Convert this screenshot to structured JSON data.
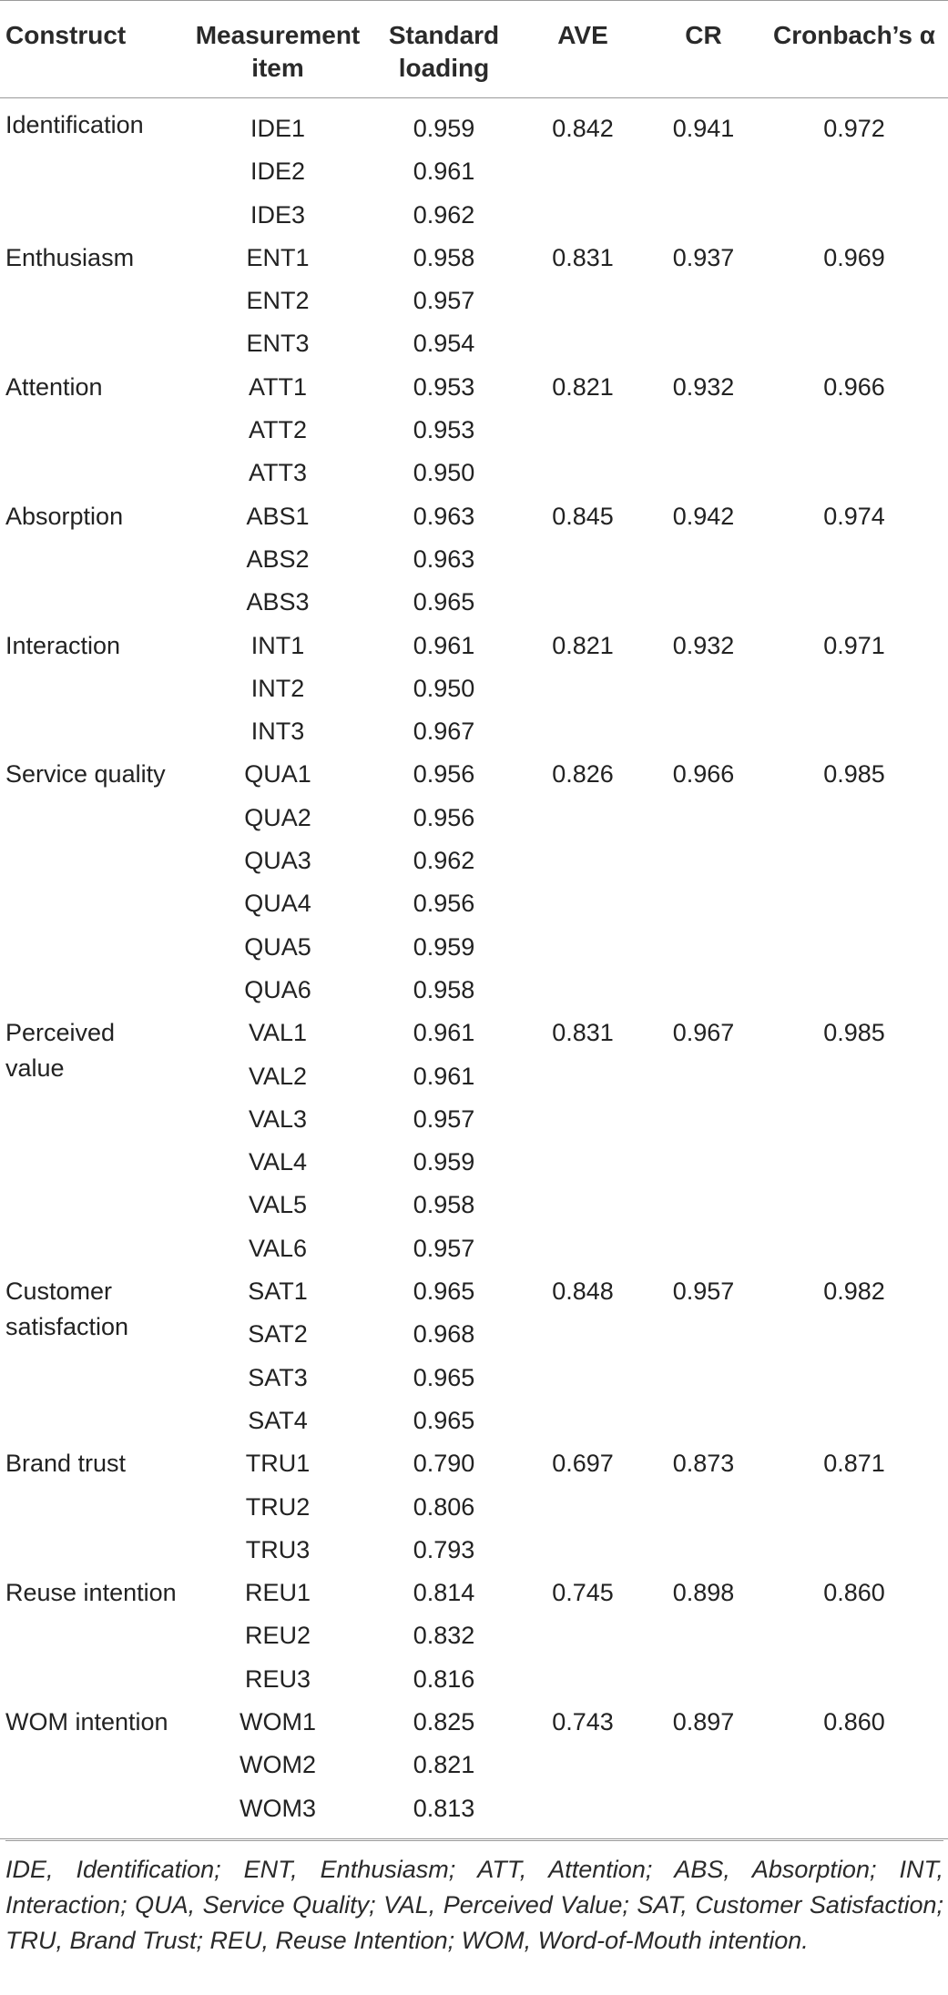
{
  "headers": {
    "construct": "Construct",
    "item": "Measurement item",
    "loading": "Standard loading",
    "ave": "AVE",
    "cr": "CR",
    "alpha": "Cronbach’s α"
  },
  "groups": [
    {
      "construct": "Identification",
      "ave": "0.842",
      "cr": "0.941",
      "alpha": "0.972",
      "items": [
        [
          "IDE1",
          "0.959"
        ],
        [
          "IDE2",
          "0.961"
        ],
        [
          "IDE3",
          "0.962"
        ]
      ]
    },
    {
      "construct": "Enthusiasm",
      "ave": "0.831",
      "cr": "0.937",
      "alpha": "0.969",
      "items": [
        [
          "ENT1",
          "0.958"
        ],
        [
          "ENT2",
          "0.957"
        ],
        [
          "ENT3",
          "0.954"
        ]
      ]
    },
    {
      "construct": "Attention",
      "ave": "0.821",
      "cr": "0.932",
      "alpha": "0.966",
      "items": [
        [
          "ATT1",
          "0.953"
        ],
        [
          "ATT2",
          "0.953"
        ],
        [
          "ATT3",
          "0.950"
        ]
      ]
    },
    {
      "construct": "Absorption",
      "ave": "0.845",
      "cr": "0.942",
      "alpha": "0.974",
      "items": [
        [
          "ABS1",
          "0.963"
        ],
        [
          "ABS2",
          "0.963"
        ],
        [
          "ABS3",
          "0.965"
        ]
      ]
    },
    {
      "construct": "Interaction",
      "ave": "0.821",
      "cr": "0.932",
      "alpha": "0.971",
      "items": [
        [
          "INT1",
          "0.961"
        ],
        [
          "INT2",
          "0.950"
        ],
        [
          "INT3",
          "0.967"
        ]
      ]
    },
    {
      "construct": "Service quality",
      "ave": "0.826",
      "cr": "0.966",
      "alpha": "0.985",
      "items": [
        [
          "QUA1",
          "0.956"
        ],
        [
          "QUA2",
          "0.956"
        ],
        [
          "QUA3",
          "0.962"
        ],
        [
          "QUA4",
          "0.956"
        ],
        [
          "QUA5",
          "0.959"
        ],
        [
          "QUA6",
          "0.958"
        ]
      ]
    },
    {
      "construct": "Perceived value",
      "ave": "0.831",
      "cr": "0.967",
      "alpha": "0.985",
      "items": [
        [
          "VAL1",
          "0.961"
        ],
        [
          "VAL2",
          "0.961"
        ],
        [
          "VAL3",
          "0.957"
        ],
        [
          "VAL4",
          "0.959"
        ],
        [
          "VAL5",
          "0.958"
        ],
        [
          "VAL6",
          "0.957"
        ]
      ]
    },
    {
      "construct": "Customer satisfaction",
      "ave": "0.848",
      "cr": "0.957",
      "alpha": "0.982",
      "items": [
        [
          "SAT1",
          "0.965"
        ],
        [
          "SAT2",
          "0.968"
        ],
        [
          "SAT3",
          "0.965"
        ],
        [
          "SAT4",
          "0.965"
        ]
      ]
    },
    {
      "construct": "Brand trust",
      "ave": "0.697",
      "cr": "0.873",
      "alpha": "0.871",
      "items": [
        [
          "TRU1",
          "0.790"
        ],
        [
          "TRU2",
          "0.806"
        ],
        [
          "TRU3",
          "0.793"
        ]
      ]
    },
    {
      "construct": "Reuse intention",
      "ave": "0.745",
      "cr": "0.898",
      "alpha": "0.860",
      "items": [
        [
          "REU1",
          "0.814"
        ],
        [
          "REU2",
          "0.832"
        ],
        [
          "REU3",
          "0.816"
        ]
      ]
    },
    {
      "construct": "WOM intention",
      "ave": "0.743",
      "cr": "0.897",
      "alpha": "0.860",
      "items": [
        [
          "WOM1",
          "0.825"
        ],
        [
          "WOM2",
          "0.821"
        ],
        [
          "WOM3",
          "0.813"
        ]
      ]
    }
  ],
  "footnote": "IDE, Identification; ENT, Enthusiasm; ATT, Attention; ABS, Absorption; INT, Interaction; QUA, Service Quality; VAL, Perceived Value; SAT, Customer Satisfaction; TRU, Brand Trust; REU, Reuse Intention; WOM, Word-of-Mouth intention."
}
